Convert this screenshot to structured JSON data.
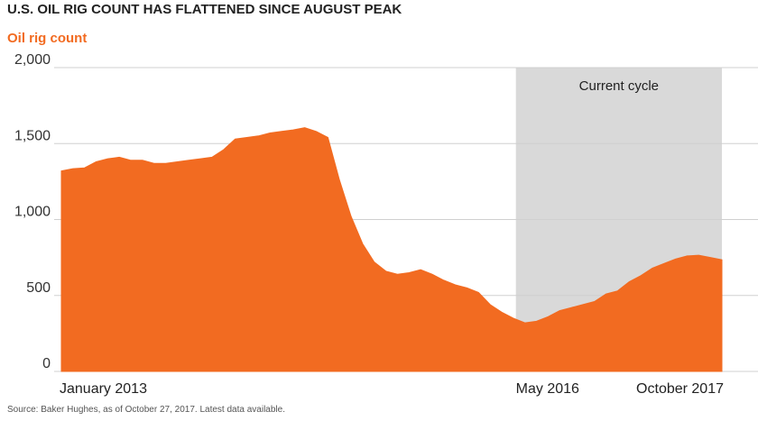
{
  "chart_data": {
    "type": "area",
    "title": "U.S. OIL RIG COUNT HAS FLATTENED SINCE AUGUST PEAK",
    "subtitle": "Oil rig count",
    "source": "Source: Baker Hughes, as of October 27, 2017. Latest data available.",
    "color": "#f26b21",
    "categories": [
      "January 2013",
      null,
      null,
      null,
      null,
      null,
      null,
      null,
      null,
      null,
      null,
      null,
      null,
      null,
      null,
      null,
      null,
      null,
      null,
      null,
      null,
      null,
      null,
      null,
      null,
      null,
      null,
      null,
      null,
      null,
      null,
      null,
      null,
      null,
      null,
      null,
      null,
      null,
      null,
      null,
      "May 2016",
      null,
      null,
      null,
      null,
      null,
      null,
      null,
      null,
      null,
      null,
      null,
      null,
      null,
      null,
      null,
      null,
      "October 2017"
    ],
    "values": [
      1320,
      1335,
      1340,
      1380,
      1400,
      1410,
      1390,
      1390,
      1370,
      1370,
      1380,
      1390,
      1400,
      1410,
      1460,
      1530,
      1540,
      1550,
      1570,
      1580,
      1590,
      1605,
      1580,
      1540,
      1260,
      1020,
      840,
      720,
      660,
      640,
      650,
      670,
      640,
      600,
      570,
      550,
      520,
      440,
      390,
      350,
      320,
      330,
      360,
      400,
      420,
      440,
      460,
      510,
      530,
      590,
      630,
      680,
      710,
      740,
      760,
      765,
      750,
      735
    ],
    "highlight": {
      "label": "Current cycle",
      "start": "May 2016",
      "color": "#d9d9d9"
    },
    "ylim": [
      0,
      2000
    ],
    "yticks": [
      0,
      500,
      {
        "value": 1000,
        "label": "1,000"
      },
      {
        "value": 1500,
        "label": "1,500"
      },
      {
        "value": 2000,
        "label": "2,000"
      }
    ],
    "grid": true
  }
}
